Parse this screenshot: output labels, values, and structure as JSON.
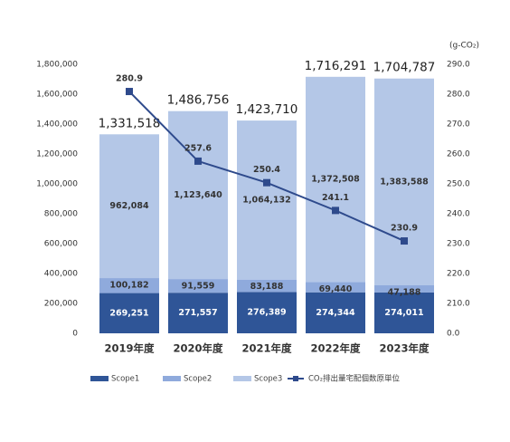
{
  "chart_data": {
    "type": "bar",
    "stacked": true,
    "categories": [
      "2019年度",
      "2020年度",
      "2021年度",
      "2022年度",
      "2023年度"
    ],
    "series": [
      {
        "name": "Scope1",
        "color": "#2f5597",
        "values": [
          269251,
          271557,
          276389,
          274344,
          274011
        ],
        "value_labels": [
          "269,251",
          "271,557",
          "276,389",
          "274,344",
          "274,011"
        ]
      },
      {
        "name": "Scope2",
        "color": "#8faadc",
        "values": [
          100182,
          91559,
          83188,
          69440,
          47188
        ],
        "value_labels": [
          "100,182",
          "91,559",
          "83,188",
          "69,440",
          "47,188"
        ]
      },
      {
        "name": "Scope3",
        "color": "#b4c7e7",
        "values": [
          962084,
          1123640,
          1064132,
          1372508,
          1383588
        ],
        "value_labels": [
          "962,084",
          "1,123,640",
          "1,064,132",
          "1,372,508",
          "1,383,588"
        ]
      },
      {
        "name": "CO₂排出量宅配個数原単位",
        "type": "line",
        "axis": "y2",
        "color": "#2e4a8c",
        "values": [
          280.9,
          257.6,
          250.4,
          241.1,
          230.9
        ]
      }
    ],
    "totals": [
      1331518,
      1486756,
      1423710,
      1716291,
      1704787
    ],
    "total_labels": [
      "1,331,518",
      "1,486,756",
      "1,423,710",
      "1,716,291",
      "1,704,787"
    ],
    "ylim": [
      0,
      1800000
    ],
    "yticks": [
      0,
      {
        "value": 200000,
        "label": "200,000"
      },
      {
        "value": 400000,
        "label": "400,000"
      },
      {
        "value": 600000,
        "label": "600,000"
      },
      {
        "value": 800000,
        "label": "800,000"
      },
      {
        "value": 1000000,
        "label": "1,000,000"
      },
      {
        "value": 1200000,
        "label": "1,200,000"
      },
      {
        "value": 1400000,
        "label": "1,400,000"
      },
      {
        "value": 1600000,
        "label": "1,600,000"
      },
      {
        "value": 1800000,
        "label": "1,800,000"
      }
    ],
    "y2lim": [
      200,
      290
    ],
    "y2_break": true,
    "y2ticks": [
      {
        "value": 0,
        "label": "0.0"
      },
      {
        "value": 210,
        "label": "210.0"
      },
      {
        "value": 220,
        "label": "220.0"
      },
      {
        "value": 230,
        "label": "230.0"
      },
      {
        "value": 240,
        "label": "240.0"
      },
      {
        "value": 250,
        "label": "250.0"
      },
      {
        "value": 260,
        "label": "260.0"
      },
      {
        "value": 270,
        "label": "270.0"
      },
      {
        "value": 280,
        "label": "280.0"
      },
      {
        "value": 290,
        "label": "290.0"
      }
    ],
    "y2_unit": "(g-CO₂)",
    "legend": "bottom"
  }
}
